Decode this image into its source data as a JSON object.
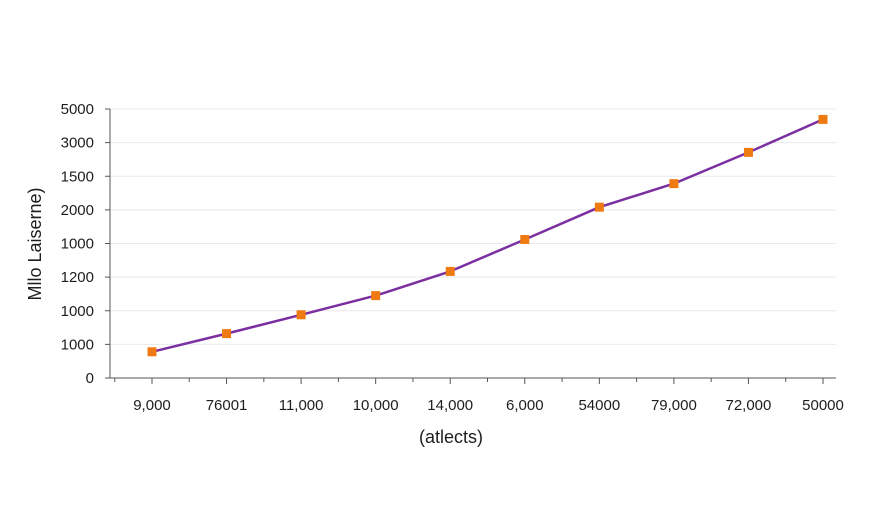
{
  "chart_data": {
    "type": "line",
    "xlabel": "(atlects)",
    "ylabel": "Mllo Laiserne)",
    "x_tick_labels": [
      "9,000",
      "76001",
      "11,000",
      "10,000",
      "14,000",
      "6,000",
      "54000",
      "79,000",
      "72,000",
      "50000"
    ],
    "y_tick_labels": [
      "0",
      "1000",
      "1000",
      "1200",
      "1000",
      "2000",
      "1500",
      "3000",
      "5000"
    ],
    "y_tick_values": [
      0,
      1,
      2,
      3,
      4,
      5,
      6,
      7,
      8
    ],
    "ylim": [
      0,
      8
    ],
    "grid": true,
    "series": [
      {
        "values": [
          0.78,
          1.32,
          1.88,
          2.45,
          3.17,
          4.12,
          5.08,
          5.78,
          6.71,
          7.69
        ]
      }
    ],
    "colors": {
      "line": "#7b2fa0",
      "marker": "#f07a12",
      "grid": "#e9e9ee",
      "axis": "#555555"
    }
  }
}
